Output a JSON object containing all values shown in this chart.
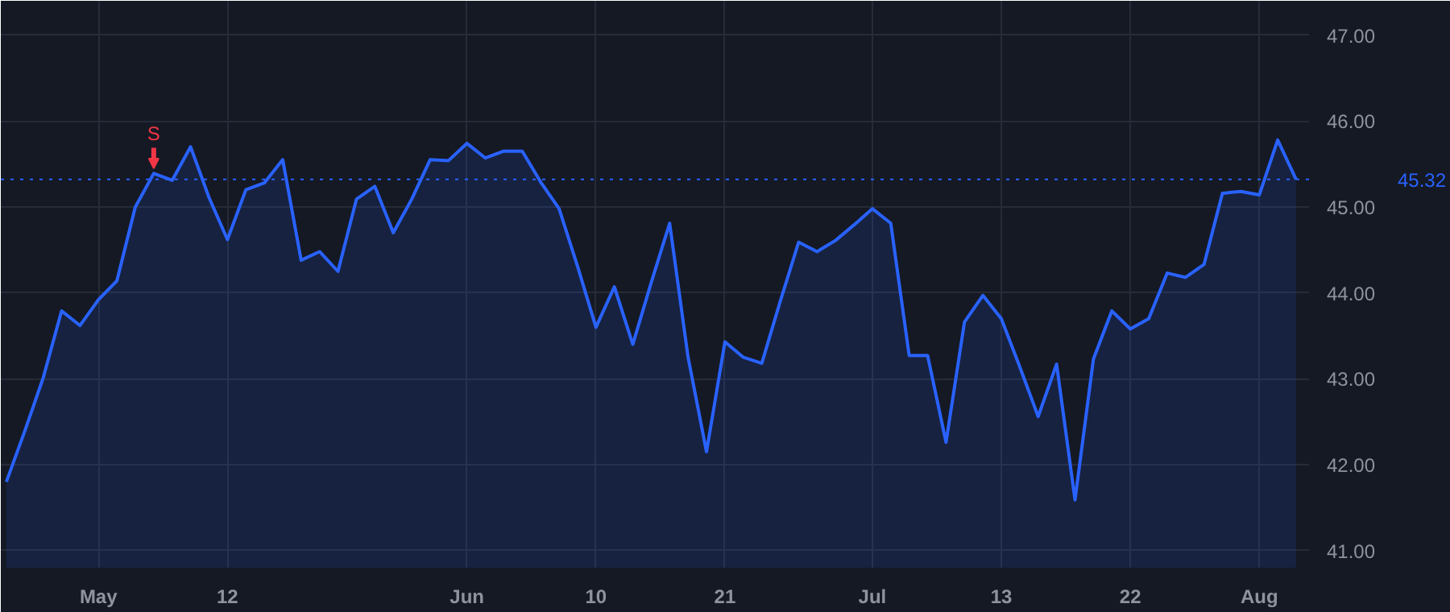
{
  "chart_data": {
    "type": "area",
    "categories": [
      null,
      null,
      null,
      null,
      null,
      "May",
      null,
      null,
      null,
      null,
      null,
      null,
      "12",
      null,
      null,
      null,
      null,
      null,
      null,
      null,
      null,
      null,
      null,
      null,
      null,
      "Jun",
      null,
      null,
      null,
      null,
      null,
      null,
      "10",
      null,
      null,
      null,
      null,
      null,
      null,
      "21",
      null,
      null,
      null,
      null,
      null,
      null,
      null,
      "Jul",
      null,
      null,
      null,
      null,
      null,
      null,
      "13",
      null,
      null,
      null,
      null,
      null,
      null,
      "22",
      null,
      null,
      null,
      null,
      null,
      null,
      "Aug",
      null,
      null
    ],
    "series": [
      {
        "color": "#2962ff",
        "values": [
          41.8,
          42.39,
          43.01,
          43.79,
          43.62,
          43.92,
          44.14,
          45.0,
          45.39,
          45.31,
          45.7,
          45.11,
          44.62,
          45.2,
          45.28,
          45.55,
          44.38,
          44.48,
          44.25,
          45.09,
          45.24,
          44.7,
          45.09,
          45.55,
          45.54,
          45.74,
          45.57,
          45.65,
          45.65,
          45.29,
          44.98,
          44.31,
          43.6,
          44.07,
          43.4,
          44.12,
          44.81,
          43.25,
          42.15,
          43.43,
          43.25,
          43.18,
          43.9,
          44.59,
          44.48,
          44.61,
          44.79,
          44.98,
          44.81,
          43.27,
          43.27,
          42.26,
          43.66,
          43.97,
          43.7,
          43.14,
          42.56,
          43.17,
          41.59,
          43.23,
          43.79,
          43.58,
          43.7,
          44.23,
          44.18,
          44.33,
          45.16,
          45.18,
          45.14,
          45.78,
          45.32
        ]
      }
    ],
    "ylim": [
      40.8,
      47.4
    ],
    "yticks": [
      {
        "value": 41,
        "label": "41.00"
      },
      {
        "value": 42,
        "label": "42.00"
      },
      {
        "value": 43,
        "label": "43.00"
      },
      {
        "value": 44,
        "label": "44.00"
      },
      {
        "value": 45,
        "label": "45.00"
      },
      {
        "value": 46,
        "label": "46.00"
      },
      {
        "value": 47,
        "label": "47.00"
      }
    ],
    "grid": true,
    "marker": "none",
    "line_style": "solid",
    "ref_lines": [
      {
        "axis": "y",
        "value": 45.32,
        "label": "45.32",
        "color": "#2962ff",
        "line_style": "dotted"
      }
    ],
    "annotations": [
      {
        "text": "S",
        "y": 45.39
      }
    ]
  }
}
